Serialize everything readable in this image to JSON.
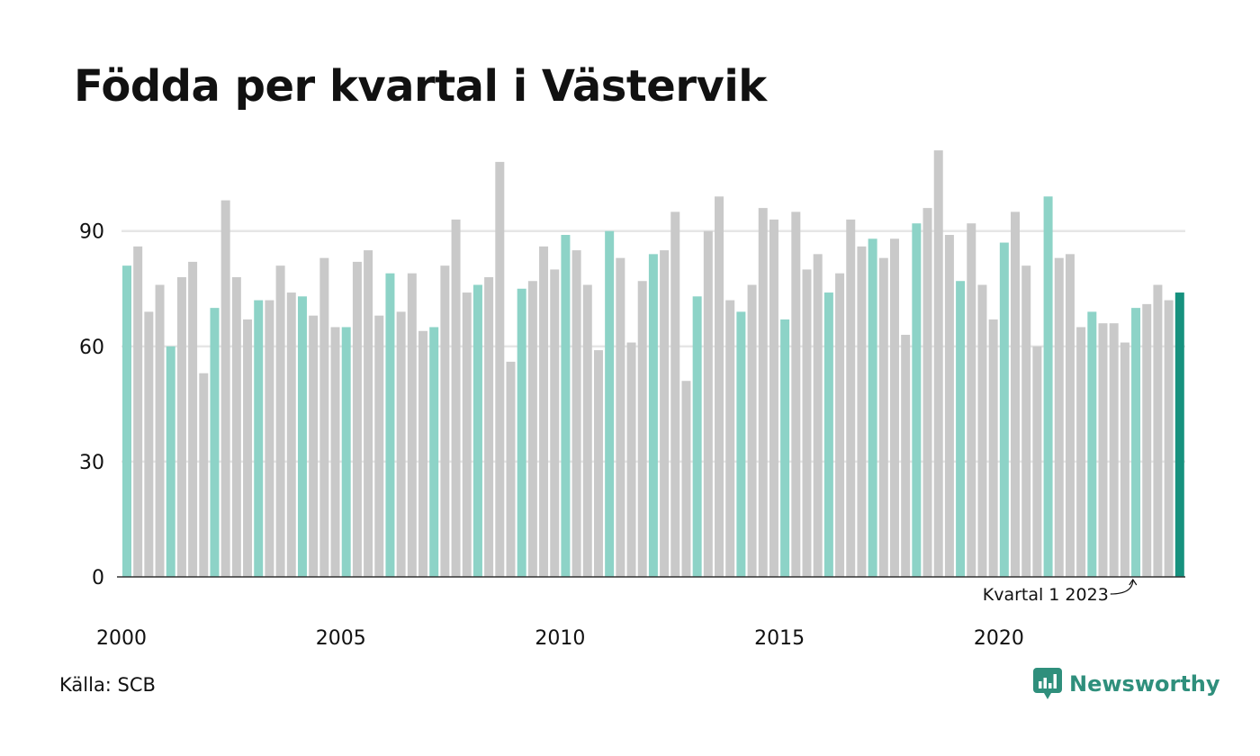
{
  "chart_data": {
    "type": "bar",
    "title": "Födda per kvartal i Västervik",
    "x_tick_labels": [
      "2000",
      "2005",
      "2010",
      "2015",
      "2020"
    ],
    "y_tick_labels": [
      "0",
      "30",
      "60",
      "90"
    ],
    "ylim": [
      0,
      115
    ],
    "grid": true,
    "start_year": 2000,
    "values": [
      81,
      86,
      69,
      76,
      60,
      78,
      82,
      53,
      70,
      98,
      78,
      67,
      72,
      72,
      81,
      74,
      73,
      68,
      83,
      65,
      65,
      82,
      85,
      68,
      79,
      69,
      79,
      64,
      65,
      81,
      93,
      74,
      76,
      78,
      108,
      56,
      75,
      77,
      86,
      80,
      89,
      85,
      76,
      59,
      90,
      83,
      61,
      77,
      84,
      85,
      95,
      51,
      73,
      90,
      99,
      72,
      69,
      76,
      96,
      93,
      67,
      95,
      80,
      84,
      74,
      79,
      93,
      86,
      88,
      83,
      88,
      63,
      92,
      96,
      111,
      89,
      77,
      92,
      76,
      67,
      87,
      95,
      81,
      60,
      99,
      83,
      84,
      65,
      69,
      66,
      66,
      61,
      70,
      71,
      76,
      72,
      74
    ],
    "highlight_quarter": 1,
    "annotation": "Kvartal 1 2023",
    "colors": {
      "quarter1": "#8dd3c7",
      "other": "#c9c9c9",
      "latest": "#16917e",
      "gridline": "#e6e6e6",
      "axis": "#333333"
    }
  },
  "footer": {
    "source": "Källa: SCB",
    "brand": "Newsworthy"
  }
}
